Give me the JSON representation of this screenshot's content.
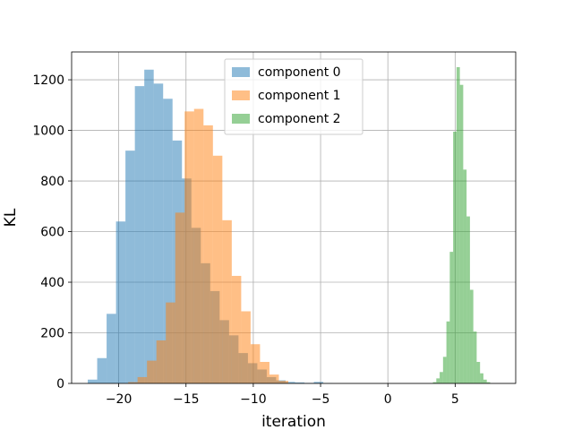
{
  "chart_data": {
    "type": "histogram",
    "xlabel": "iteration",
    "ylabel": "KL",
    "xlim": [
      -23.5,
      9.5
    ],
    "ylim": [
      0,
      1310
    ],
    "xticks": [
      -20,
      -15,
      -10,
      -5,
      0,
      5
    ],
    "xtick_labels": [
      "−20",
      "−15",
      "−10",
      "−5",
      "0",
      "5"
    ],
    "yticks": [
      0,
      200,
      400,
      600,
      800,
      1000,
      1200
    ],
    "ytick_labels": [
      "0",
      "200",
      "400",
      "600",
      "800",
      "1000",
      "1200"
    ],
    "grid": true,
    "legend_position": "upper center",
    "series": [
      {
        "name": "component 0",
        "color": "#1f77b4",
        "alpha": 0.5,
        "bins": [
          [
            -22.3,
            -21.6,
            15
          ],
          [
            -21.6,
            -20.9,
            100
          ],
          [
            -20.9,
            -20.2,
            275
          ],
          [
            -20.2,
            -19.5,
            640
          ],
          [
            -19.5,
            -18.8,
            920
          ],
          [
            -18.8,
            -18.1,
            1175
          ],
          [
            -18.1,
            -17.4,
            1240
          ],
          [
            -17.4,
            -16.7,
            1185
          ],
          [
            -16.7,
            -16.0,
            1125
          ],
          [
            -16.0,
            -15.3,
            960
          ],
          [
            -15.3,
            -14.6,
            810
          ],
          [
            -14.6,
            -13.9,
            615
          ],
          [
            -13.9,
            -13.2,
            475
          ],
          [
            -13.2,
            -12.5,
            365
          ],
          [
            -12.5,
            -11.8,
            250
          ],
          [
            -11.8,
            -11.1,
            190
          ],
          [
            -11.1,
            -10.4,
            120
          ],
          [
            -10.4,
            -9.7,
            80
          ],
          [
            -9.7,
            -9.0,
            55
          ],
          [
            -9.0,
            -8.3,
            25
          ],
          [
            -8.3,
            -7.6,
            12
          ],
          [
            -7.6,
            -6.9,
            6
          ],
          [
            -6.9,
            -6.2,
            4
          ],
          [
            -6.2,
            -5.5,
            2
          ],
          [
            -5.5,
            -4.8,
            6
          ],
          [
            -4.8,
            -4.1,
            1
          ]
        ]
      },
      {
        "name": "component 1",
        "color": "#ff7f0e",
        "alpha": 0.5,
        "bins": [
          [
            -19.3,
            -18.6,
            5
          ],
          [
            -18.6,
            -17.9,
            25
          ],
          [
            -17.9,
            -17.2,
            90
          ],
          [
            -17.2,
            -16.5,
            170
          ],
          [
            -16.5,
            -15.8,
            320
          ],
          [
            -15.8,
            -15.1,
            675
          ],
          [
            -15.1,
            -14.4,
            1075
          ],
          [
            -14.4,
            -13.7,
            1085
          ],
          [
            -13.7,
            -13.0,
            1020
          ],
          [
            -13.0,
            -12.3,
            900
          ],
          [
            -12.3,
            -11.6,
            645
          ],
          [
            -11.6,
            -10.9,
            425
          ],
          [
            -10.9,
            -10.2,
            285
          ],
          [
            -10.2,
            -9.5,
            155
          ],
          [
            -9.5,
            -8.8,
            85
          ],
          [
            -8.8,
            -8.1,
            35
          ],
          [
            -8.1,
            -7.4,
            10
          ]
        ]
      },
      {
        "name": "component 2",
        "color": "#2ca02c",
        "alpha": 0.5,
        "bins": [
          [
            3.35,
            3.6,
            5
          ],
          [
            3.6,
            3.85,
            20
          ],
          [
            3.85,
            4.1,
            45
          ],
          [
            4.1,
            4.35,
            105
          ],
          [
            4.35,
            4.6,
            245
          ],
          [
            4.6,
            4.85,
            520
          ],
          [
            4.85,
            5.1,
            995
          ],
          [
            5.1,
            5.35,
            1250
          ],
          [
            5.35,
            5.6,
            1180
          ],
          [
            5.6,
            5.85,
            845
          ],
          [
            5.85,
            6.1,
            660
          ],
          [
            6.1,
            6.35,
            370
          ],
          [
            6.35,
            6.6,
            205
          ],
          [
            6.6,
            6.85,
            85
          ],
          [
            6.85,
            7.1,
            40
          ],
          [
            7.1,
            7.35,
            15
          ],
          [
            7.35,
            7.6,
            5
          ]
        ]
      }
    ]
  }
}
